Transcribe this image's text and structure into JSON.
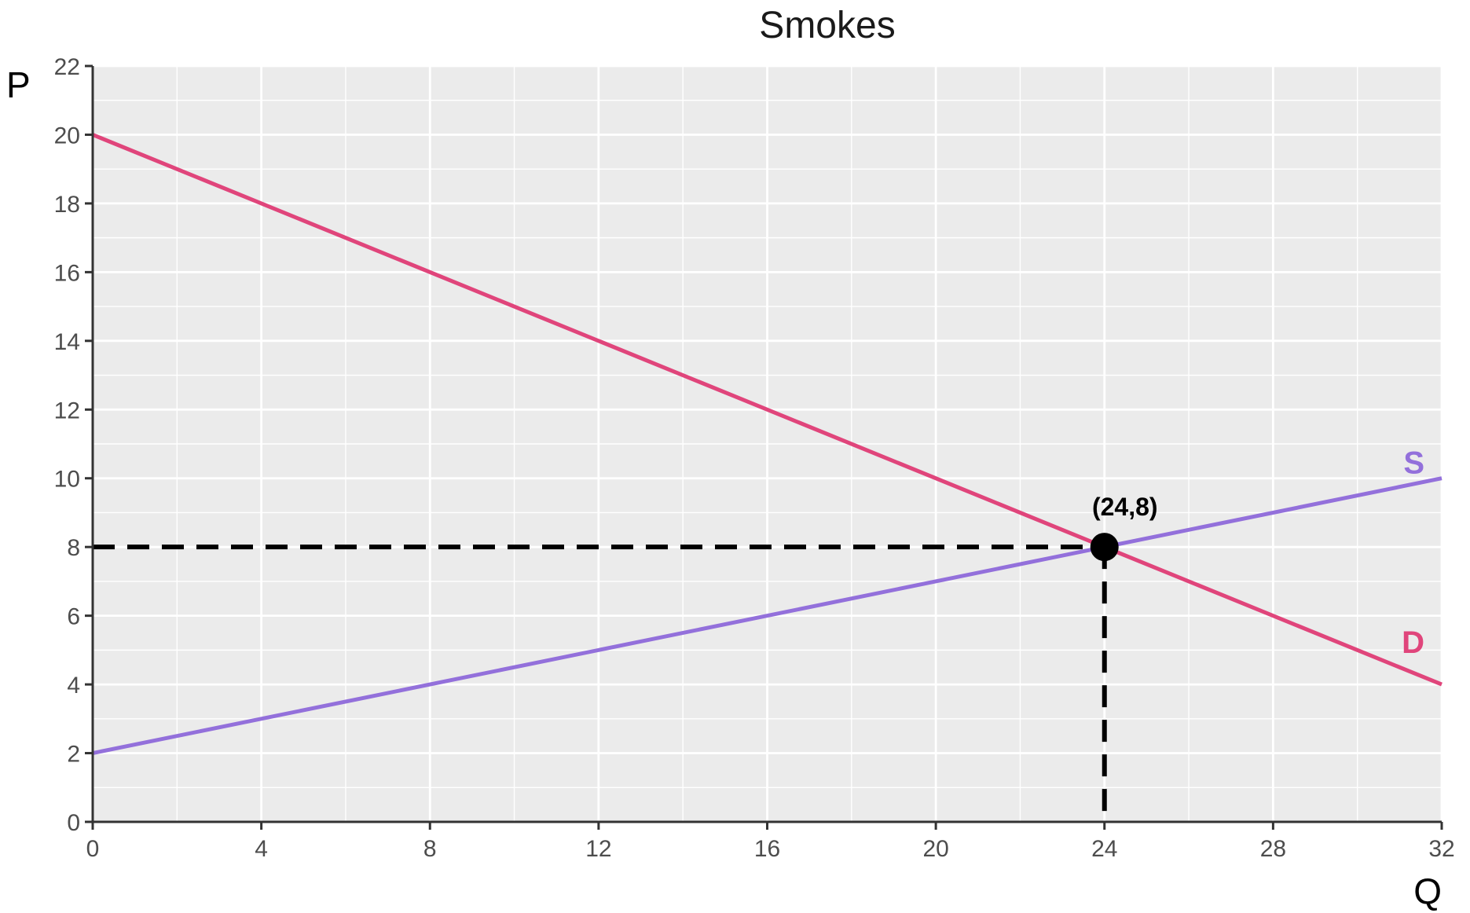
{
  "chart_data": {
    "type": "line",
    "title": "Smokes",
    "xlabel": "Q",
    "ylabel": "P",
    "xlim": [
      0,
      32
    ],
    "ylim": [
      0,
      22
    ],
    "x_ticks": [
      0,
      4,
      8,
      12,
      16,
      20,
      24,
      28,
      32
    ],
    "y_ticks": [
      0,
      2,
      4,
      6,
      8,
      10,
      12,
      14,
      16,
      18,
      20,
      22
    ],
    "grid": true,
    "series": [
      {
        "name": "D",
        "color": "#e0457b",
        "points": [
          [
            0,
            20
          ],
          [
            32,
            4
          ]
        ]
      },
      {
        "name": "S",
        "color": "#9370db",
        "points": [
          [
            0,
            2
          ],
          [
            32,
            10
          ]
        ]
      }
    ],
    "equilibrium": {
      "x": 24,
      "y": 8,
      "label": "(24,8)"
    }
  }
}
